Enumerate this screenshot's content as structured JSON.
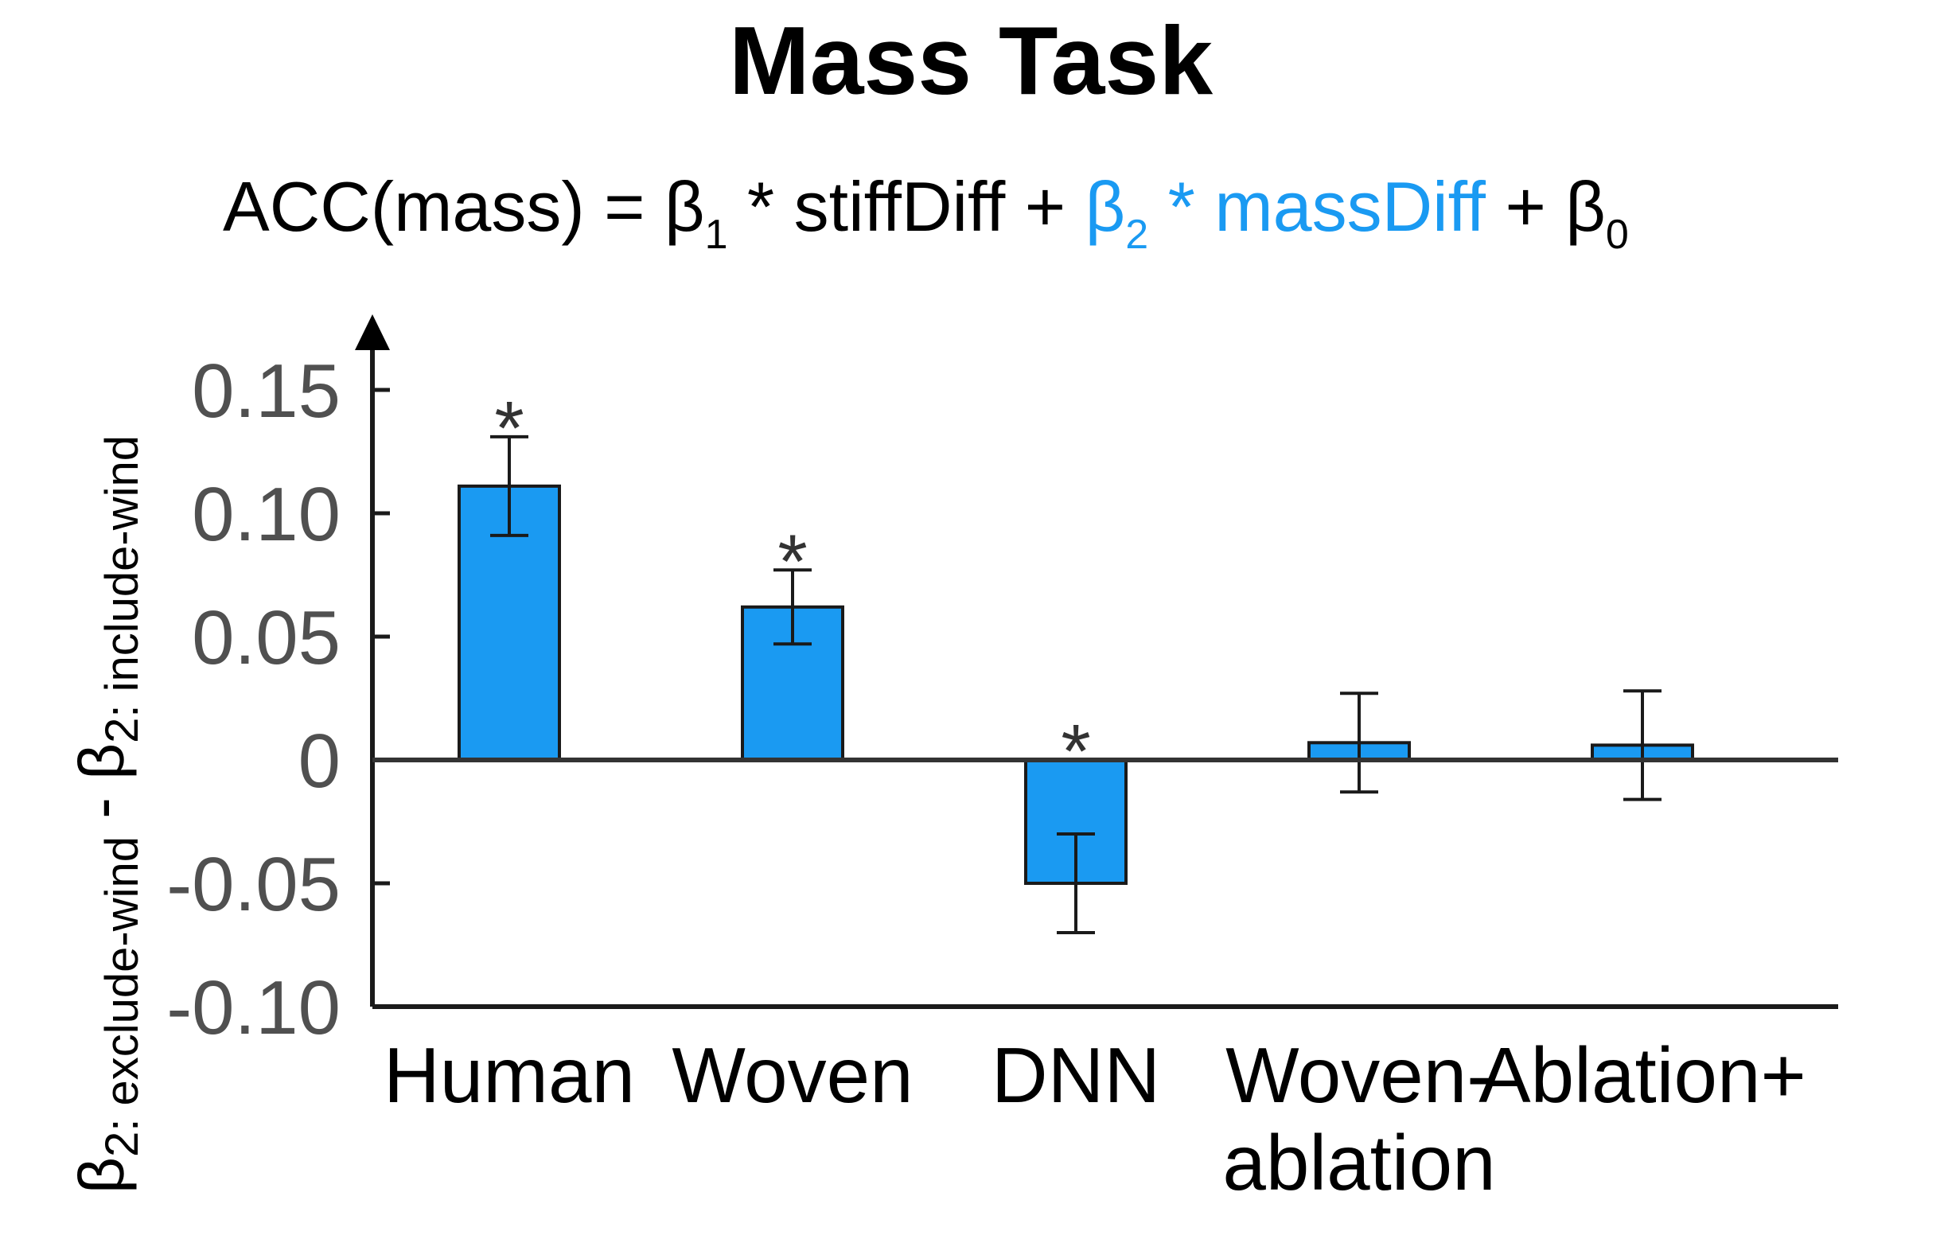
{
  "chart_data": {
    "type": "bar",
    "title": "Mass Task",
    "subtitle": {
      "parts": [
        {
          "text": "ACC(mass) = β",
          "sub": "1",
          "tail": " * stiffDiff + ",
          "color": "#000000"
        },
        {
          "text": "β",
          "sub": "2",
          "tail": " * massDiff",
          "color": "#1a9af2"
        },
        {
          "text": " + β",
          "sub": "0",
          "tail": "",
          "color": "#000000"
        }
      ]
    },
    "ylabel": {
      "left": {
        "text": "β",
        "sub": "2: exclude-wind"
      },
      "sep": " - ",
      "right": {
        "text": "β",
        "sub": "2: include-wind"
      }
    },
    "categories": [
      "Human",
      "Woven",
      "DNN",
      "Woven-\nablation",
      "Ablation+"
    ],
    "values": [
      0.111,
      0.062,
      -0.05,
      0.007,
      0.006
    ],
    "error": [
      0.02,
      0.015,
      0.02,
      0.02,
      0.022
    ],
    "significant": [
      true,
      true,
      true,
      false,
      false
    ],
    "sig_marker": "*",
    "ylim": [
      -0.1,
      0.18
    ],
    "yticks": [
      -0.1,
      -0.05,
      0,
      0.05,
      0.1,
      0.15
    ],
    "ytick_labels": [
      "-0.10",
      "-0.05",
      "0",
      "0.05",
      "0.10",
      "0.15"
    ],
    "grid": false,
    "bar_color": "#1a9af2",
    "edge_color": "#1a1a1a",
    "tick_color": "#505050"
  }
}
